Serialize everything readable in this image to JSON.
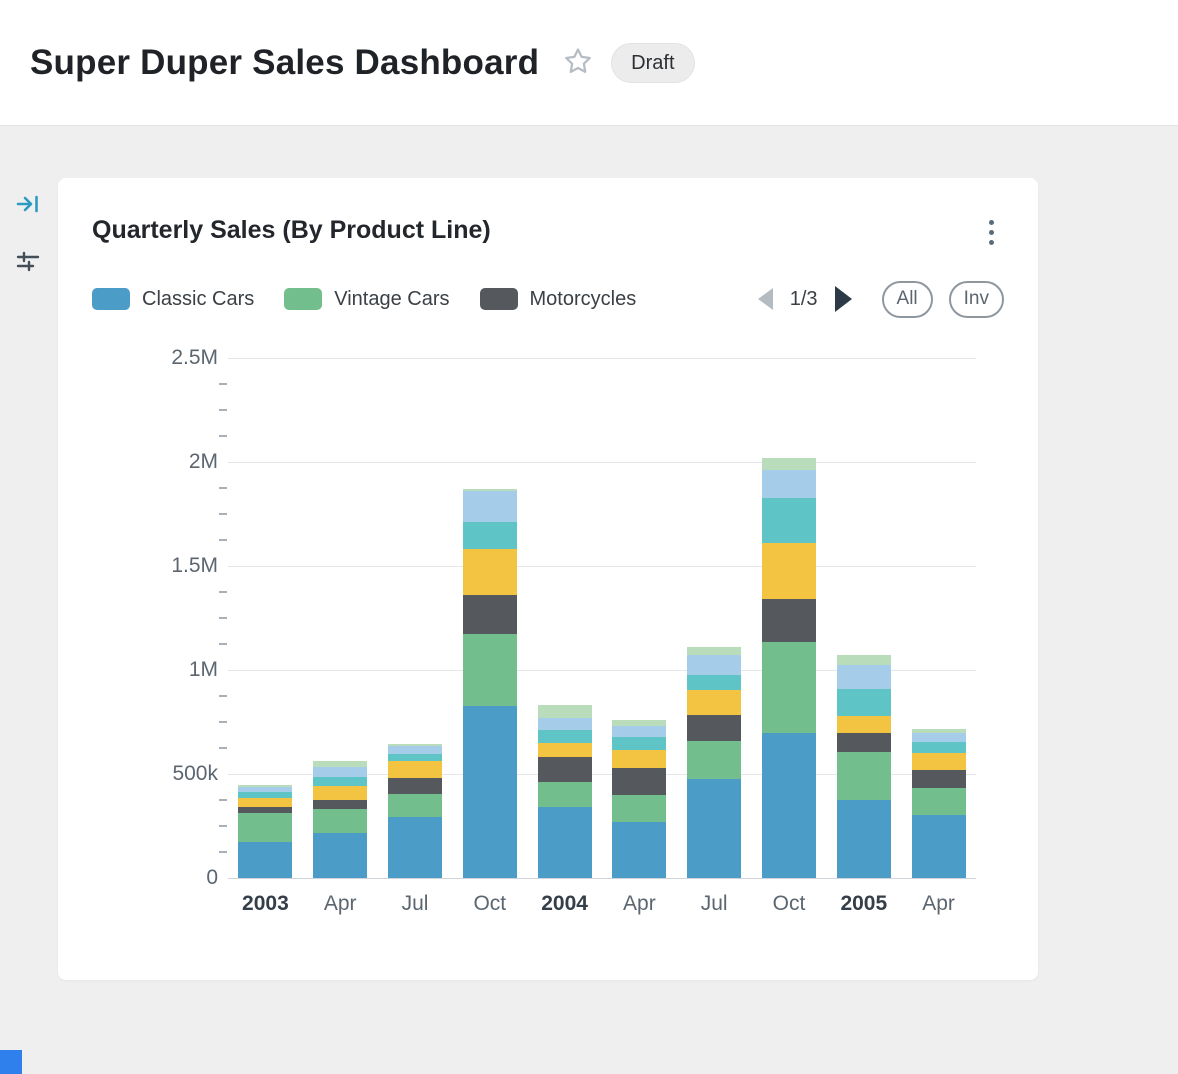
{
  "page": {
    "title": "Super Duper Sales Dashboard",
    "status_badge": "Draft"
  },
  "icons": [
    "star-icon",
    "kebab-menu-icon",
    "collapse-panel-icon",
    "filter-icon",
    "prev-arrow-icon",
    "next-arrow-icon"
  ],
  "card": {
    "title": "Quarterly Sales (By Product Line)",
    "pagination": {
      "current": "1/3"
    },
    "buttons": {
      "all": "All",
      "inv": "Inv"
    },
    "legend": [
      {
        "label": "Classic Cars",
        "color": "#4B9CC7"
      },
      {
        "label": "Vintage Cars",
        "color": "#72BE8C"
      },
      {
        "label": "Motorcycles",
        "color": "#55585C"
      }
    ]
  },
  "chart_data": {
    "type": "bar",
    "stacked": true,
    "title": "Quarterly Sales (By Product Line)",
    "categories": [
      "2003",
      "Apr",
      "Jul",
      "Oct",
      "2004",
      "Apr",
      "Jul",
      "Oct",
      "2005",
      "Apr"
    ],
    "bold_categories": [
      "2003",
      "2004",
      "2005"
    ],
    "ylim": [
      0,
      2500000
    ],
    "minor_tick_step": 125000,
    "grid": "horizontal",
    "legend_position": "top",
    "y_ticks": [
      {
        "label": "2.5M",
        "value": 2500000
      },
      {
        "label": "2M",
        "value": 2000000
      },
      {
        "label": "1.5M",
        "value": 1500000
      },
      {
        "label": "1M",
        "value": 1000000
      },
      {
        "label": "500k",
        "value": 500000
      },
      {
        "label": "0",
        "value": 0
      }
    ],
    "series": [
      {
        "name": "Classic Cars",
        "color": "#4B9CC7",
        "values": [
          170000,
          215000,
          290000,
          825000,
          340000,
          270000,
          475000,
          695000,
          375000,
          300000
        ]
      },
      {
        "name": "Vintage Cars",
        "color": "#72BE8C",
        "values": [
          140000,
          115000,
          115000,
          345000,
          120000,
          130000,
          185000,
          440000,
          230000,
          130000
        ]
      },
      {
        "name": "Motorcycles",
        "color": "#55585C",
        "values": [
          30000,
          45000,
          75000,
          190000,
          120000,
          130000,
          125000,
          205000,
          90000,
          90000
        ]
      },
      {
        "name": "unlabeled-yellow",
        "color": "#F2C441",
        "values": [
          45000,
          65000,
          80000,
          220000,
          70000,
          85000,
          120000,
          270000,
          85000,
          80000
        ]
      },
      {
        "name": "unlabeled-teal",
        "color": "#5FC4C6",
        "values": [
          30000,
          45000,
          35000,
          130000,
          60000,
          60000,
          70000,
          215000,
          130000,
          55000
        ]
      },
      {
        "name": "unlabeled-light-blue",
        "color": "#A5CDE9",
        "values": [
          20000,
          50000,
          40000,
          150000,
          60000,
          55000,
          95000,
          135000,
          115000,
          40000
        ]
      },
      {
        "name": "unlabeled-light-green",
        "color": "#B9DCBB",
        "values": [
          10000,
          25000,
          10000,
          10000,
          60000,
          30000,
          40000,
          60000,
          45000,
          20000
        ]
      }
    ]
  }
}
